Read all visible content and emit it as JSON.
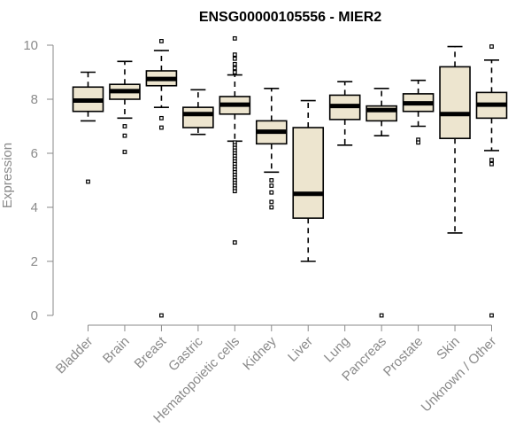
{
  "chart_data": {
    "type": "boxplot",
    "title": "ENSG00000105556 - MIER2",
    "xlabel": "",
    "ylabel": "Expression",
    "ylim": [
      0,
      10
    ],
    "yticks": [
      0,
      2,
      4,
      6,
      8,
      10
    ],
    "box_fill": "#ede5cf",
    "categories": [
      "Bladder",
      "Brain",
      "Breast",
      "Gastric",
      "Hematopoietic cells",
      "Kidney",
      "Liver",
      "Lung",
      "Pancreas",
      "Prostate",
      "Skin",
      "Unknown / Other"
    ],
    "boxes": [
      {
        "whisker_low": 7.2,
        "q1": 7.55,
        "median": 7.95,
        "q3": 8.45,
        "whisker_high": 9.0,
        "outliers": [
          4.95
        ]
      },
      {
        "whisker_low": 7.3,
        "q1": 8.0,
        "median": 8.3,
        "q3": 8.55,
        "whisker_high": 9.4,
        "outliers": [
          7.0,
          6.65,
          6.05
        ]
      },
      {
        "whisker_low": 7.7,
        "q1": 8.5,
        "median": 8.75,
        "q3": 9.05,
        "whisker_high": 9.8,
        "outliers": [
          10.15,
          7.3,
          6.95,
          0.0
        ]
      },
      {
        "whisker_low": 6.7,
        "q1": 6.95,
        "median": 7.45,
        "q3": 7.7,
        "whisker_high": 8.35,
        "outliers": []
      },
      {
        "whisker_low": 6.45,
        "q1": 7.45,
        "median": 7.8,
        "q3": 8.1,
        "whisker_high": 8.9,
        "outliers": [
          10.25,
          9.65,
          9.5,
          9.3,
          9.15,
          9.0,
          6.4,
          6.3,
          6.2,
          6.1,
          6.0,
          5.9,
          5.8,
          5.7,
          5.6,
          5.5,
          5.4,
          5.3,
          5.2,
          5.1,
          5.0,
          4.9,
          4.8,
          4.7,
          4.6,
          2.7
        ]
      },
      {
        "whisker_low": 5.3,
        "q1": 6.35,
        "median": 6.8,
        "q3": 7.2,
        "whisker_high": 8.4,
        "outliers": [
          5.0,
          4.8,
          4.55,
          4.2,
          4.0
        ]
      },
      {
        "whisker_low": 2.0,
        "q1": 3.6,
        "median": 4.5,
        "q3": 6.95,
        "whisker_high": 7.95,
        "outliers": []
      },
      {
        "whisker_low": 6.3,
        "q1": 7.25,
        "median": 7.75,
        "q3": 8.15,
        "whisker_high": 8.65,
        "outliers": []
      },
      {
        "whisker_low": 6.65,
        "q1": 7.2,
        "median": 7.6,
        "q3": 7.75,
        "whisker_high": 8.4,
        "outliers": [
          0.0
        ]
      },
      {
        "whisker_low": 7.0,
        "q1": 7.55,
        "median": 7.85,
        "q3": 8.2,
        "whisker_high": 8.7,
        "outliers": [
          6.5,
          6.4
        ]
      },
      {
        "whisker_low": 3.05,
        "q1": 6.55,
        "median": 7.45,
        "q3": 9.2,
        "whisker_high": 9.95,
        "outliers": []
      },
      {
        "whisker_low": 6.1,
        "q1": 7.3,
        "median": 7.8,
        "q3": 8.25,
        "whisker_high": 9.45,
        "outliers": [
          9.95,
          5.75,
          5.6,
          0.0
        ]
      }
    ]
  }
}
